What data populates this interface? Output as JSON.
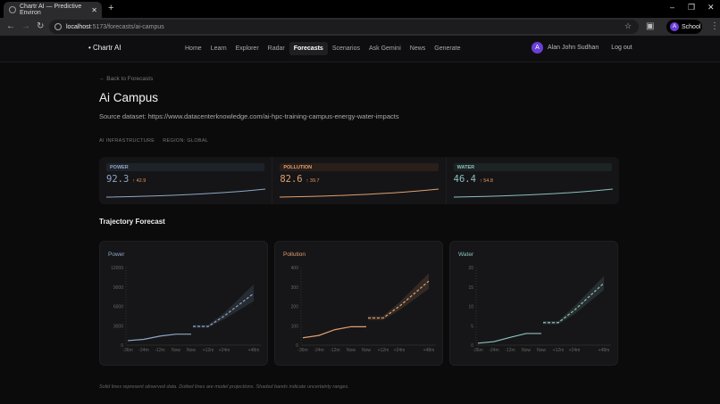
{
  "browser": {
    "tab_title": "Chartr AI — Predictive Environ",
    "url_host": "localhost",
    "url_path": ":5173/forecasts/ai-campus",
    "profile_initial": "A",
    "profile_label": "School"
  },
  "nav": {
    "brand": "Chartr AI",
    "links": [
      "Home",
      "Learn",
      "Explorer",
      "Radar",
      "Forecasts",
      "Scenarios",
      "Ask Gemini",
      "News",
      "Generate"
    ],
    "active": "Forecasts",
    "user_initial": "A",
    "user_name": "Alan John Sudhan",
    "logout": "Log out"
  },
  "page": {
    "back": "← Back to Forecasts",
    "title": "Ai Campus",
    "source": "Source dataset: https://www.datacenterknowledge.com/ai-hpc-training-campus-energy-water-impacts",
    "tags": [
      "AI INFRASTRUCTURE",
      "REGION: GLOBAL"
    ],
    "section_title": "Trajectory Forecast",
    "footnote": "Solid lines represent observed data. Dotted lines are model projections. Shaded bands indicate uncertainty ranges."
  },
  "metrics": [
    {
      "label": "POWER",
      "value": "92.3",
      "change": "↑ 42.9",
      "color": "#8fa8c8",
      "label_bg": "#1e2329"
    },
    {
      "label": "POLLUTION",
      "value": "82.6",
      "change": "↑ 39.7",
      "color": "#e0a070",
      "label_bg": "#2a1f19"
    },
    {
      "label": "WATER",
      "value": "46.4",
      "change": "↑ 54.8",
      "color": "#8cc0bd",
      "label_bg": "#1c2424"
    }
  ],
  "chart_data": [
    {
      "type": "line",
      "title": "Power",
      "color": "#8fa8c8",
      "x_labels": [
        "-36m",
        "-24m",
        "-12m",
        "Now",
        "Now",
        "+12m",
        "+24m",
        "+48m"
      ],
      "yticks": [
        0,
        3000,
        6000,
        9000,
        12000
      ],
      "ylim": [
        0,
        12000
      ],
      "observed": [
        700,
        900,
        1400,
        1700,
        1700
      ],
      "forecast": [
        2900,
        2900,
        4500,
        8000
      ],
      "band_low": [
        2700,
        2700,
        4000,
        6800
      ],
      "band_high": [
        3100,
        3100,
        5000,
        9400
      ]
    },
    {
      "type": "line",
      "title": "Pollution",
      "color": "#e0a070",
      "x_labels": [
        "-36m",
        "-24m",
        "-12m",
        "Now",
        "Now",
        "+12m",
        "+24m",
        "+48m"
      ],
      "yticks": [
        0,
        100,
        200,
        300,
        400
      ],
      "ylim": [
        0,
        400
      ],
      "observed": [
        38,
        50,
        80,
        95,
        95
      ],
      "forecast": [
        140,
        140,
        200,
        330
      ],
      "band_low": [
        130,
        130,
        180,
        290
      ],
      "band_high": [
        150,
        150,
        220,
        370
      ]
    },
    {
      "type": "line",
      "title": "Water",
      "color": "#8cc0bd",
      "x_labels": [
        "-36m",
        "-24m",
        "-12m",
        "Now",
        "Now",
        "+12m",
        "+24m",
        "+48m"
      ],
      "yticks": [
        0,
        5,
        10,
        15,
        20
      ],
      "ylim": [
        0,
        20
      ],
      "observed": [
        0.5,
        0.9,
        2,
        3,
        3
      ],
      "forecast": [
        5.8,
        5.8,
        9,
        16
      ],
      "band_low": [
        5.4,
        5.4,
        8,
        14.2
      ],
      "band_high": [
        6.2,
        6.2,
        10,
        17.8
      ]
    }
  ]
}
